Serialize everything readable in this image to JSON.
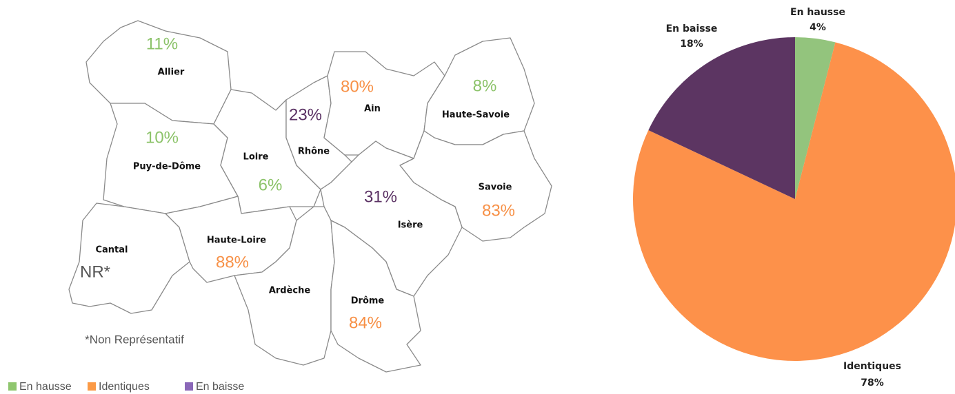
{
  "map": {
    "regions": [
      {
        "name": "Allier",
        "label": "11%",
        "color": "#8cc36a"
      },
      {
        "name": "Puy-de-Dôme",
        "label": "10%",
        "color": "#8cc36a"
      },
      {
        "name": "Loire",
        "label": "6%",
        "color": "#8cc36a"
      },
      {
        "name": "Rhône",
        "label": "23%",
        "color": "#5b3264"
      },
      {
        "name": "Ain",
        "label": "80%",
        "color": "#f79046"
      },
      {
        "name": "Haute-Savoie",
        "label": "8%",
        "color": "#8cc36a"
      },
      {
        "name": "Savoie",
        "label": "83%",
        "color": "#f79046"
      },
      {
        "name": "Isère",
        "label": "31%",
        "color": "#5b3264"
      },
      {
        "name": "Haute-Loire",
        "label": "88%",
        "color": "#f79046"
      },
      {
        "name": "Cantal",
        "label": "NR*",
        "color": "#555555"
      },
      {
        "name": "Ardèche"
      },
      {
        "name": "Drôme",
        "label": "84%",
        "color": "#f79046"
      }
    ],
    "note": "*Non Représentatif",
    "legend": [
      {
        "name": "En hausse",
        "color": "#8fc66e"
      },
      {
        "name": "Identiques",
        "color": "#fb9a46"
      },
      {
        "name": "En baisse",
        "color": "#8a67b8"
      }
    ]
  },
  "chart_data": {
    "type": "pie",
    "categories": [
      "En hausse",
      "Identiques",
      "En baisse"
    ],
    "values": [
      4,
      78,
      18
    ],
    "value_labels": [
      "4%",
      "78%",
      "18%"
    ],
    "colors": [
      "#93c47d",
      "#fd914a",
      "#5c3562"
    ]
  }
}
